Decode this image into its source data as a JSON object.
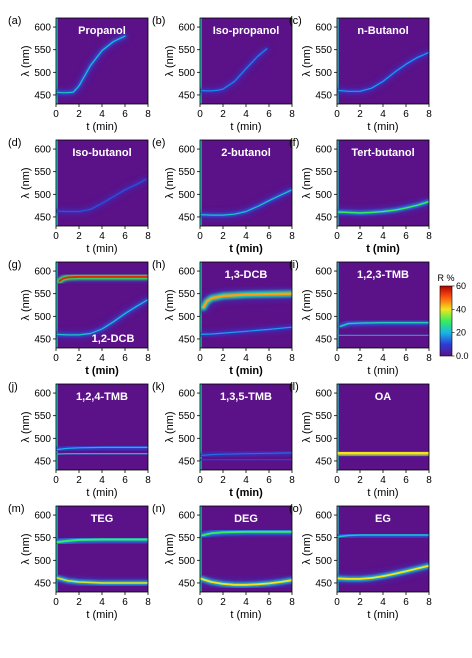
{
  "chart_data": {
    "type": "heatmap",
    "colors": {
      "background": "#5b1187",
      "ridge": [
        "#2b5cff",
        "#19c7e6",
        "#35ee5c",
        "#f2e41d",
        "#ff3a12",
        "#b30000"
      ],
      "time_zero_line": "#20d0c0"
    },
    "colorbar": {
      "title": "R %",
      "ticks": [
        "60",
        "40",
        "20",
        "0.0"
      ],
      "range": [
        0,
        60
      ],
      "stops": [
        "#5b1187",
        "#2d3dd6",
        "#19b6e6",
        "#35ee5c",
        "#f2e41d",
        "#ff5a12",
        "#b30000"
      ]
    },
    "x_axis": {
      "label": "t (min)",
      "range": [
        0,
        8
      ],
      "ticks": [
        "0",
        "2",
        "4",
        "6",
        "8"
      ]
    },
    "y_axis": {
      "label": "λ (nm)",
      "range": [
        430,
        620
      ],
      "ticks": [
        "450",
        "500",
        "550",
        "600"
      ]
    },
    "panels": [
      {
        "label": "(a)",
        "title": "Propanol",
        "x_label_bold": false,
        "ridges": [
          {
            "t": [
              0,
              0.5,
              1,
              1.5,
              2,
              3,
              4,
              5,
              6
            ],
            "lambda": [
              456,
              455,
              455,
              456,
              470,
              515,
              548,
              568,
              580
            ],
            "intensity": 22,
            "width": 6
          }
        ]
      },
      {
        "label": "(b)",
        "title": "Iso-propanol",
        "x_label_bold": false,
        "ridges": [
          {
            "t": [
              0,
              0.5,
              1,
              1.5,
              2,
              3,
              4,
              5,
              5.8
            ],
            "lambda": [
              460,
              459,
              459,
              460,
              463,
              480,
              508,
              535,
              552
            ],
            "intensity": 16,
            "width": 5
          }
        ]
      },
      {
        "label": "(c)",
        "title": "n-Butanol",
        "x_label_bold": false,
        "ridges": [
          {
            "t": [
              0,
              1,
              2,
              3,
              4,
              5,
              6,
              7,
              8
            ],
            "lambda": [
              460,
              458,
              458,
              465,
              480,
              500,
              518,
              533,
              544
            ],
            "intensity": 18,
            "width": 5
          }
        ]
      },
      {
        "label": "(d)",
        "title": "Iso-butanol",
        "x_label_bold": false,
        "ridges": [
          {
            "t": [
              0,
              1,
              2,
              3,
              4,
              5,
              6,
              7,
              7.8
            ],
            "lambda": [
              463,
              462,
              462,
              467,
              480,
              495,
              510,
              522,
              533
            ],
            "intensity": 12,
            "width": 4
          }
        ]
      },
      {
        "label": "(e)",
        "title": "2-butanol",
        "x_label_bold": true,
        "ridges": [
          {
            "t": [
              0,
              1,
              2,
              3,
              4,
              5,
              6,
              7,
              8
            ],
            "lambda": [
              455,
              454,
              454,
              456,
              462,
              473,
              486,
              498,
              510
            ],
            "intensity": 22,
            "width": 6
          }
        ]
      },
      {
        "label": "(f)",
        "title": "Tert-butanol",
        "x_label_bold": true,
        "ridges": [
          {
            "t": [
              0,
              1,
              2,
              3,
              4,
              5,
              6,
              7,
              8
            ],
            "lambda": [
              461,
              460,
              459,
              460,
              462,
              465,
              470,
              476,
              484
            ],
            "intensity": 30,
            "width": 7
          }
        ]
      },
      {
        "label": "(g)",
        "title": "1,2-DCB",
        "title_position": "bottom",
        "x_label_bold": true,
        "ridges": [
          {
            "t": [
              0.3,
              0.6,
              1,
              2,
              4,
              6,
              8
            ],
            "lambda": [
              578,
              583,
              586,
              587,
              587,
              587,
              587
            ],
            "intensity": 55,
            "width": 10
          },
          {
            "t": [
              0,
              1,
              2,
              3,
              4,
              5,
              6,
              7,
              8
            ],
            "lambda": [
              460,
              459,
              459,
              462,
              472,
              488,
              506,
              522,
              537
            ],
            "intensity": 22,
            "width": 6
          }
        ]
      },
      {
        "label": "(h)",
        "title": "1,3-DCB",
        "x_label_bold": true,
        "ridges": [
          {
            "t": [
              0.3,
              0.6,
              1,
              2,
              4,
              6,
              8
            ],
            "lambda": [
              520,
              533,
              540,
              545,
              548,
              549,
              550
            ],
            "intensity": 45,
            "width": 12
          },
          {
            "t": [
              0,
              1,
              2,
              4,
              6,
              8
            ],
            "lambda": [
              460,
              461,
              463,
              467,
              471,
              476
            ],
            "intensity": 18,
            "width": 5
          }
        ]
      },
      {
        "label": "(i)",
        "title": "1,2,3-TMB",
        "x_label_bold": false,
        "ridges": [
          {
            "t": [
              0.3,
              1,
              2,
              4,
              6,
              8
            ],
            "lambda": [
              478,
              484,
              485,
              486,
              486,
              486
            ],
            "intensity": 24,
            "width": 7
          },
          {
            "t": [
              0,
              1,
              2,
              4,
              6,
              8
            ],
            "lambda": [
              458,
              458,
              458,
              458,
              458,
              458
            ],
            "intensity": 18,
            "width": 4
          }
        ]
      },
      {
        "label": "(j)",
        "title": "1,2,4-TMB",
        "x_label_bold": false,
        "ridges": [
          {
            "t": [
              0,
              1,
              2,
              4,
              6,
              8
            ],
            "lambda": [
              475,
              478,
              479,
              480,
              480,
              480
            ],
            "intensity": 20,
            "width": 6
          },
          {
            "t": [
              0,
              1,
              2,
              4,
              6,
              8
            ],
            "lambda": [
              465,
              466,
              466,
              466,
              466,
              466
            ],
            "intensity": 22,
            "width": 5
          }
        ]
      },
      {
        "label": "(k)",
        "title": "1,3,5-TMB",
        "x_label_bold": true,
        "ridges": [
          {
            "t": [
              0,
              1,
              2,
              4,
              6,
              8
            ],
            "lambda": [
              462,
              464,
              465,
              466,
              467,
              468
            ],
            "intensity": 14,
            "width": 5
          },
          {
            "t": [
              0,
              1,
              2,
              4,
              6,
              8
            ],
            "lambda": [
              452,
              453,
              453,
              453,
              453,
              453
            ],
            "intensity": 10,
            "width": 3
          }
        ]
      },
      {
        "label": "(l)",
        "title": "OA",
        "x_label_bold": false,
        "ridges": [
          {
            "t": [
              0,
              1,
              2,
              4,
              6,
              8
            ],
            "lambda": [
              467,
              467,
              467,
              467,
              467,
              467
            ],
            "intensity": 40,
            "width": 14
          },
          {
            "t": [
              0,
              1,
              2,
              4,
              6,
              8
            ],
            "lambda": [
              462,
              462,
              462,
              462,
              462,
              462
            ],
            "intensity": 20,
            "width": 4
          }
        ]
      },
      {
        "label": "(m)",
        "title": "TEG",
        "x_label_bold": false,
        "ridges": [
          {
            "t": [
              0,
              1,
              2,
              4,
              6,
              8
            ],
            "lambda": [
              540,
              543,
              545,
              546,
              546,
              546
            ],
            "intensity": 30,
            "width": 10
          },
          {
            "t": [
              0,
              1,
              2,
              4,
              6,
              8
            ],
            "lambda": [
              462,
              455,
              452,
              450,
              450,
              450
            ],
            "intensity": 38,
            "width": 8
          }
        ]
      },
      {
        "label": "(n)",
        "title": "DEG",
        "x_label_bold": false,
        "ridges": [
          {
            "t": [
              0.2,
              1,
              2,
              4,
              6,
              8
            ],
            "lambda": [
              555,
              560,
              562,
              563,
              563,
              563
            ],
            "intensity": 30,
            "width": 9
          },
          {
            "t": [
              0,
              1,
              2,
              3,
              4,
              5,
              6,
              7,
              8
            ],
            "lambda": [
              460,
              452,
              448,
              446,
              446,
              447,
              449,
              452,
              456
            ],
            "intensity": 40,
            "width": 9
          }
        ]
      },
      {
        "label": "(o)",
        "title": "EG",
        "x_label_bold": false,
        "ridges": [
          {
            "t": [
              0,
              1,
              2,
              4,
              6,
              8
            ],
            "lambda": [
              552,
              555,
              556,
              556,
              556,
              556
            ],
            "intensity": 22,
            "width": 8
          },
          {
            "t": [
              0,
              1,
              2,
              3,
              4,
              5,
              6,
              7,
              8
            ],
            "lambda": [
              460,
              459,
              459,
              461,
              465,
              470,
              476,
              482,
              488
            ],
            "intensity": 40,
            "width": 9
          }
        ]
      }
    ]
  }
}
